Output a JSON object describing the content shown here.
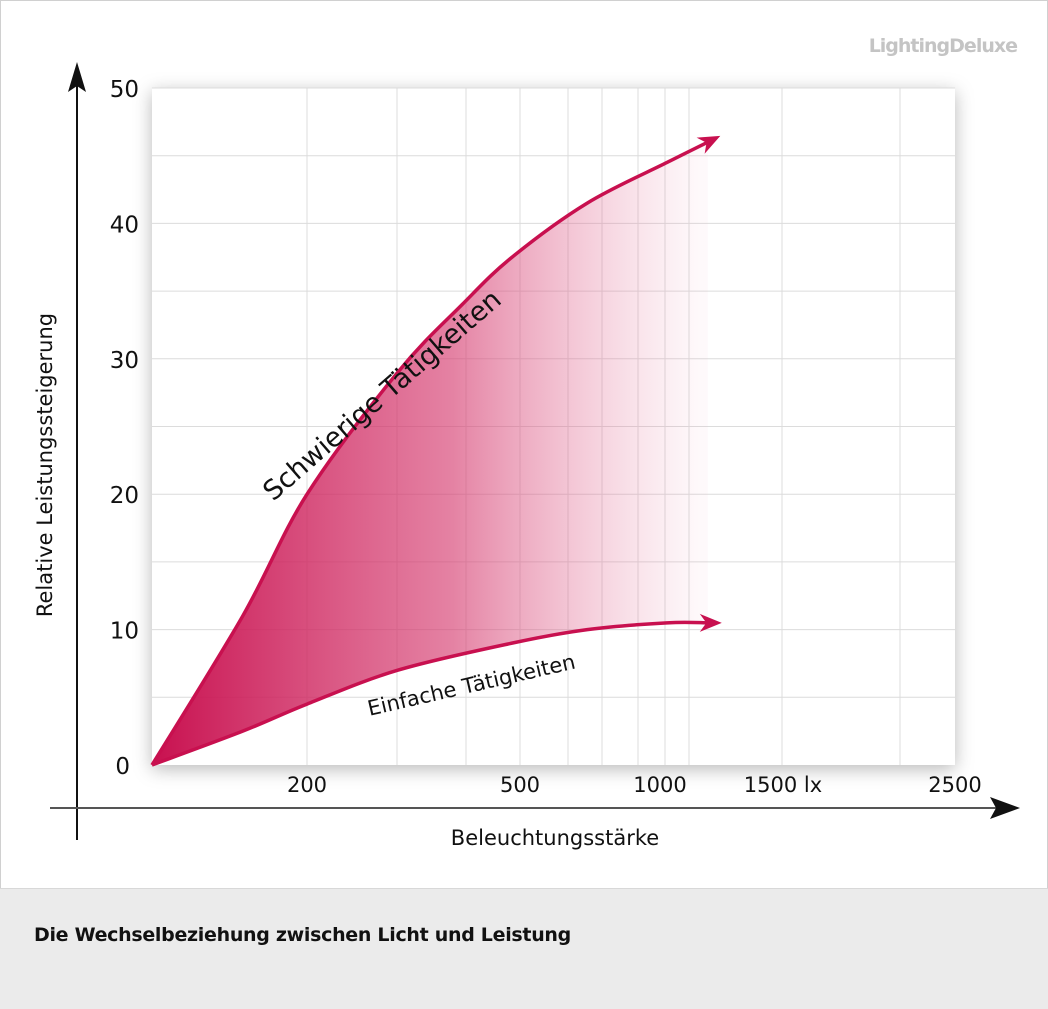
{
  "logo": "LightingDeluxe",
  "caption": "Die Wechselbeziehung zwischen Licht und Leistung",
  "chart_data": {
    "type": "area",
    "xlabel": "Beleuchtungsstärke",
    "ylabel": "Relative Leistungssteigerung",
    "x_scale": "log",
    "x_unit": "lx",
    "x_tick_labels": [
      "200",
      "500",
      "1000",
      "1500 lx",
      "2500"
    ],
    "y_tick_labels": [
      "0",
      "10",
      "20",
      "30",
      "40",
      "50"
    ],
    "ylim": [
      0,
      50
    ],
    "grid": true,
    "fill_color": "#c8104f",
    "series": [
      {
        "name": "Schwierige Tätigkeiten",
        "x": [
          100,
          150,
          200,
          300,
          400,
          500,
          700,
          1000,
          1200
        ],
        "y": [
          0,
          11,
          20,
          29,
          34,
          37.5,
          41.5,
          44.5,
          46
        ]
      },
      {
        "name": "Einfache Tätigkeiten",
        "x": [
          100,
          150,
          200,
          300,
          500,
          700,
          1000,
          1200
        ],
        "y": [
          0,
          2.5,
          4.5,
          7,
          9,
          10,
          10.5,
          10.5
        ]
      }
    ]
  }
}
